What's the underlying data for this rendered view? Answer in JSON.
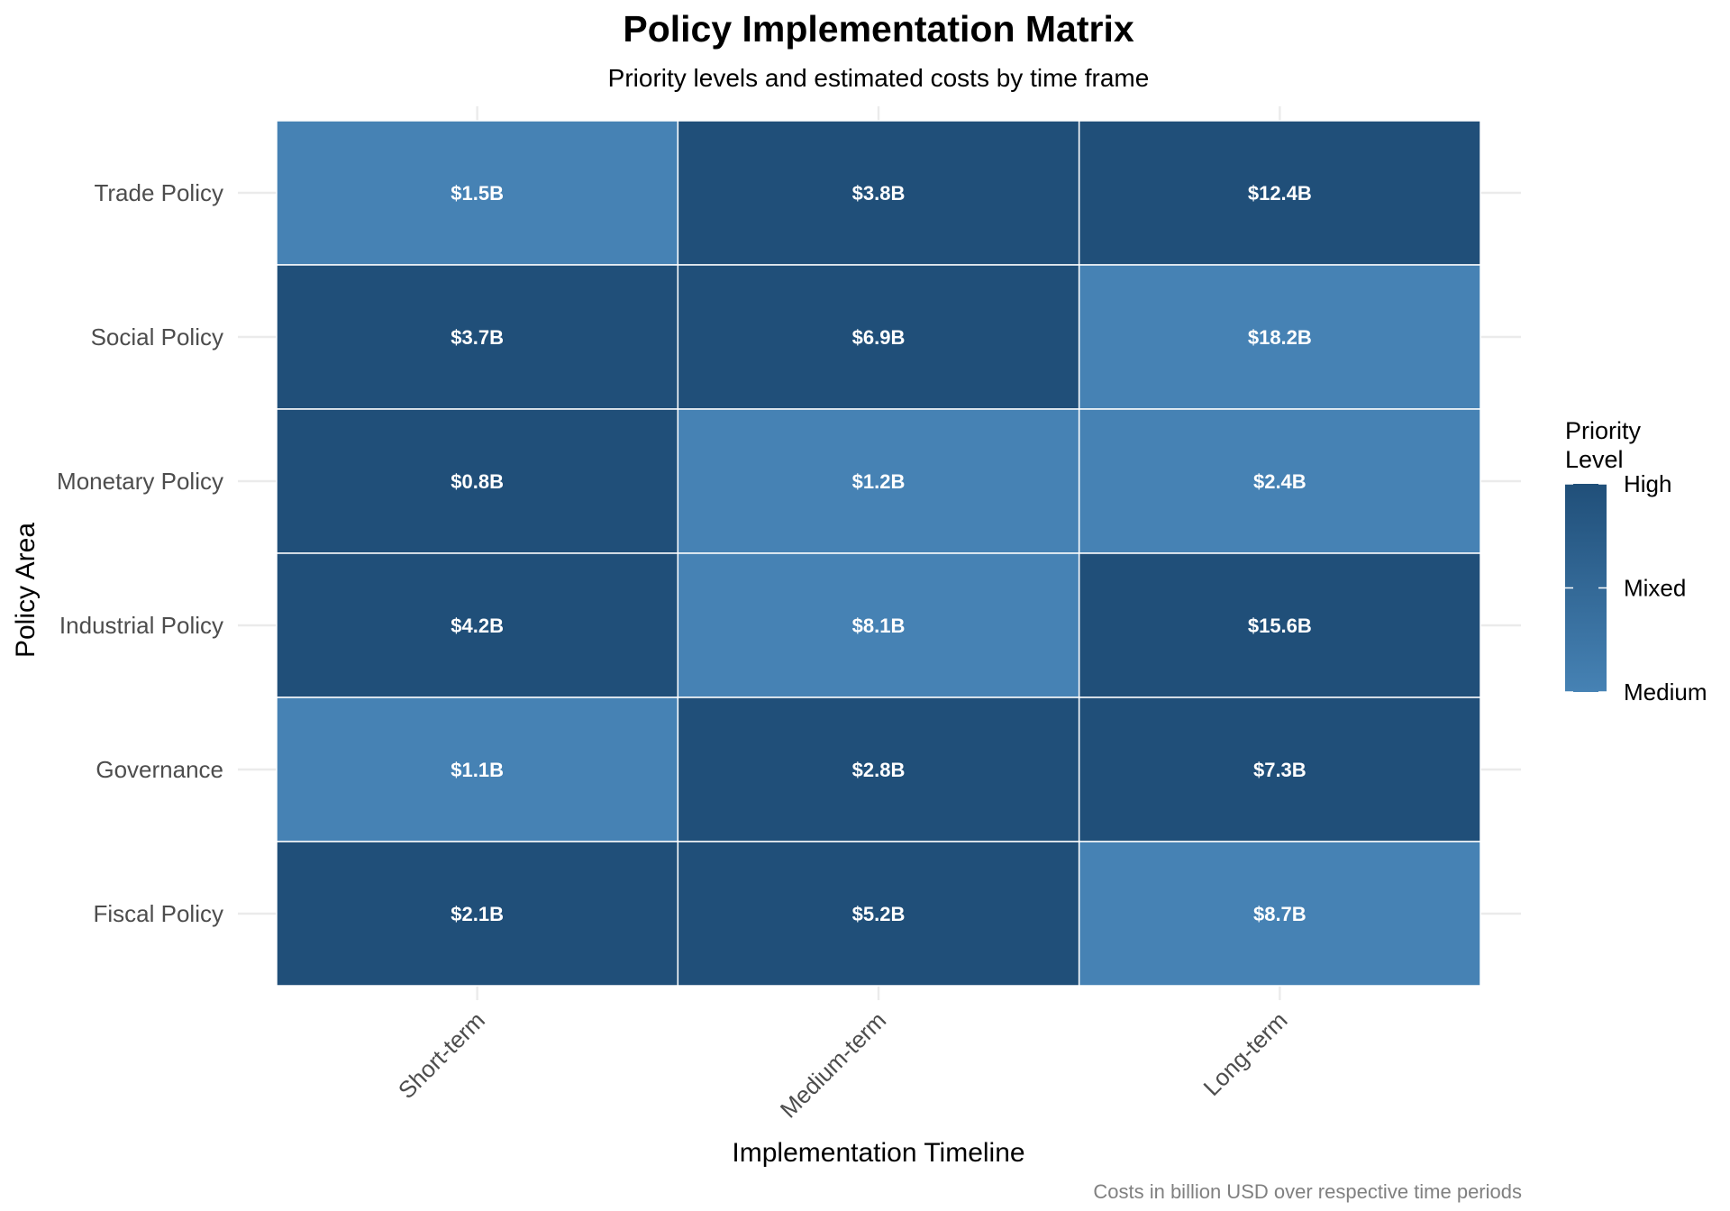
{
  "chart_data": {
    "type": "heatmap",
    "title": "Policy Implementation Matrix",
    "subtitle": "Priority levels and estimated costs by time frame",
    "xlabel": "Implementation Timeline",
    "ylabel": "Policy Area",
    "caption": "Costs in billion USD over respective time periods",
    "x_categories": [
      "Short-term",
      "Medium-term",
      "Long-term"
    ],
    "y_categories": [
      "Trade Policy",
      "Social Policy",
      "Monetary Policy",
      "Industrial Policy",
      "Governance",
      "Fiscal Policy"
    ],
    "cells": [
      {
        "policy": "Trade Policy",
        "timeline": "Short-term",
        "priority": "Medium",
        "label": "$1.5B"
      },
      {
        "policy": "Trade Policy",
        "timeline": "Medium-term",
        "priority": "High",
        "label": "$3.8B"
      },
      {
        "policy": "Trade Policy",
        "timeline": "Long-term",
        "priority": "High",
        "label": "$12.4B"
      },
      {
        "policy": "Social Policy",
        "timeline": "Short-term",
        "priority": "High",
        "label": "$3.7B"
      },
      {
        "policy": "Social Policy",
        "timeline": "Medium-term",
        "priority": "High",
        "label": "$6.9B"
      },
      {
        "policy": "Social Policy",
        "timeline": "Long-term",
        "priority": "Medium",
        "label": "$18.2B"
      },
      {
        "policy": "Monetary Policy",
        "timeline": "Short-term",
        "priority": "High",
        "label": "$0.8B"
      },
      {
        "policy": "Monetary Policy",
        "timeline": "Medium-term",
        "priority": "Medium",
        "label": "$1.2B"
      },
      {
        "policy": "Monetary Policy",
        "timeline": "Long-term",
        "priority": "Medium",
        "label": "$2.4B"
      },
      {
        "policy": "Industrial Policy",
        "timeline": "Short-term",
        "priority": "High",
        "label": "$4.2B"
      },
      {
        "policy": "Industrial Policy",
        "timeline": "Medium-term",
        "priority": "Medium",
        "label": "$8.1B"
      },
      {
        "policy": "Industrial Policy",
        "timeline": "Long-term",
        "priority": "High",
        "label": "$15.6B"
      },
      {
        "policy": "Governance",
        "timeline": "Short-term",
        "priority": "Medium",
        "label": "$1.1B"
      },
      {
        "policy": "Governance",
        "timeline": "Medium-term",
        "priority": "High",
        "label": "$2.8B"
      },
      {
        "policy": "Governance",
        "timeline": "Long-term",
        "priority": "High",
        "label": "$7.3B"
      },
      {
        "policy": "Fiscal Policy",
        "timeline": "Short-term",
        "priority": "High",
        "label": "$2.1B"
      },
      {
        "policy": "Fiscal Policy",
        "timeline": "Medium-term",
        "priority": "High",
        "label": "$5.2B"
      },
      {
        "policy": "Fiscal Policy",
        "timeline": "Long-term",
        "priority": "Medium",
        "label": "$8.7B"
      }
    ],
    "colors": {
      "High": "#204f79",
      "Medium": "#4682b4"
    },
    "legend": {
      "title_lines": [
        "Priority",
        "Level"
      ],
      "labels": [
        "High",
        "Mixed",
        "Medium"
      ],
      "placement": "right"
    },
    "grid": true
  }
}
